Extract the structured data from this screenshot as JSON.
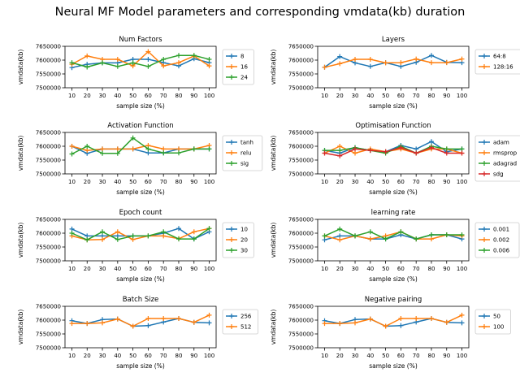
{
  "figure": {
    "title": "Neural MF Model parameters and corresponding vmdata(kb) duration"
  },
  "colors": {
    "series": [
      "#1f77b4",
      "#ff7f0e",
      "#2ca02c",
      "#d62728"
    ],
    "axis": "#000000"
  },
  "chart_data": [
    {
      "type": "line",
      "title": "Num Factors",
      "xlabel": "sample size (%)",
      "ylabel": "vmdata(kb)",
      "x": [
        10,
        20,
        30,
        40,
        50,
        60,
        70,
        80,
        90,
        100
      ],
      "yticks": [
        "7500000",
        "7550000",
        "7600000",
        "7650000"
      ],
      "ylim": [
        7500000,
        7650000
      ],
      "legend": "right",
      "series": [
        {
          "name": "8",
          "values": [
            7573000,
            7585000,
            7590000,
            7590000,
            7603000,
            7603000,
            7591000,
            7579000,
            7605000,
            7591000
          ]
        },
        {
          "name": "16",
          "values": [
            7585000,
            7615000,
            7603000,
            7603000,
            7579000,
            7631000,
            7579000,
            7591000,
            7615000,
            7579000
          ]
        },
        {
          "name": "24",
          "values": [
            7591000,
            7575000,
            7590000,
            7577000,
            7590000,
            7577000,
            7603000,
            7617000,
            7617000,
            7603000
          ]
        }
      ]
    },
    {
      "type": "line",
      "title": "Layers",
      "xlabel": "sample size (%)",
      "ylabel": "vmdata(kb)",
      "x": [
        10,
        20,
        30,
        40,
        50,
        60,
        70,
        80,
        90,
        100
      ],
      "yticks": [
        "7500000",
        "7550000",
        "7600000",
        "7650000"
      ],
      "ylim": [
        7500000,
        7650000
      ],
      "legend": "right",
      "series": [
        {
          "name": "64:8",
          "values": [
            7574000,
            7613000,
            7590000,
            7577000,
            7591000,
            7577000,
            7592000,
            7617000,
            7592000,
            7591000
          ]
        },
        {
          "name": "128:16",
          "values": [
            7574000,
            7587000,
            7603000,
            7603000,
            7590000,
            7591000,
            7604000,
            7591000,
            7591000,
            7604000
          ]
        }
      ]
    },
    {
      "type": "line",
      "title": "Activation Function",
      "xlabel": "sample size (%)",
      "ylabel": "vmdata(kb)",
      "x": [
        10,
        20,
        30,
        40,
        50,
        60,
        70,
        80,
        90,
        100
      ],
      "yticks": [
        "7500000",
        "7550000",
        "7600000",
        "7650000"
      ],
      "ylim": [
        7500000,
        7650000
      ],
      "legend": "right",
      "series": [
        {
          "name": "tanh",
          "values": [
            7600000,
            7574000,
            7590000,
            7590000,
            7590000,
            7576000,
            7576000,
            7590000,
            7590000,
            7590000
          ]
        },
        {
          "name": "relu",
          "values": [
            7600000,
            7585000,
            7590000,
            7590000,
            7590000,
            7603000,
            7590000,
            7590000,
            7590000,
            7603000
          ]
        },
        {
          "name": "sig",
          "values": [
            7572000,
            7600000,
            7574000,
            7574000,
            7630000,
            7590000,
            7576000,
            7576000,
            7590000,
            7590000
          ]
        }
      ]
    },
    {
      "type": "line",
      "title": "Optimisation Function",
      "xlabel": "sample size (%)",
      "ylabel": "vmdata(kb)",
      "x": [
        10,
        20,
        30,
        40,
        50,
        60,
        70,
        80,
        90,
        100
      ],
      "yticks": [
        "7500000",
        "7550000",
        "7600000",
        "7650000"
      ],
      "ylim": [
        7500000,
        7650000
      ],
      "legend": "right",
      "series": [
        {
          "name": "adam",
          "values": [
            7585000,
            7575000,
            7595000,
            7585000,
            7580000,
            7603000,
            7590000,
            7617000,
            7580000,
            7590000
          ]
        },
        {
          "name": "rmsprop",
          "values": [
            7575000,
            7600000,
            7575000,
            7590000,
            7580000,
            7590000,
            7575000,
            7590000,
            7590000,
            7575000
          ]
        },
        {
          "name": "adagrad",
          "values": [
            7585000,
            7585000,
            7595000,
            7585000,
            7575000,
            7600000,
            7575000,
            7600000,
            7590000,
            7590000
          ]
        },
        {
          "name": "sdg",
          "values": [
            7575000,
            7565000,
            7590000,
            7585000,
            7580000,
            7595000,
            7575000,
            7595000,
            7575000,
            7575000
          ]
        }
      ]
    },
    {
      "type": "line",
      "title": "Epoch count",
      "xlabel": "sample size (%)",
      "ylabel": "vmdata(kb)",
      "x": [
        10,
        20,
        30,
        40,
        50,
        60,
        70,
        80,
        90,
        100
      ],
      "yticks": [
        "7500000",
        "7550000",
        "7600000",
        "7650000"
      ],
      "ylim": [
        7500000,
        7650000
      ],
      "legend": "right",
      "series": [
        {
          "name": "10",
          "values": [
            7615000,
            7590000,
            7590000,
            7590000,
            7590000,
            7590000,
            7600000,
            7617000,
            7579000,
            7605000
          ]
        },
        {
          "name": "20",
          "values": [
            7590000,
            7576000,
            7577000,
            7605000,
            7577000,
            7590000,
            7590000,
            7580000,
            7605000,
            7617000
          ]
        },
        {
          "name": "30",
          "values": [
            7600000,
            7576000,
            7605000,
            7577000,
            7590000,
            7590000,
            7605000,
            7579000,
            7579000,
            7617000
          ]
        }
      ]
    },
    {
      "type": "line",
      "title": "learning rate",
      "xlabel": "sample size (%)",
      "ylabel": "vmdata(kb)",
      "x": [
        10,
        20,
        30,
        40,
        50,
        60,
        70,
        80,
        90,
        100
      ],
      "yticks": [
        "7500000",
        "7550000",
        "7600000",
        "7650000"
      ],
      "ylim": [
        7500000,
        7650000
      ],
      "legend": "right",
      "series": [
        {
          "name": "0.001",
          "values": [
            7576000,
            7590000,
            7590000,
            7579000,
            7579000,
            7594000,
            7579000,
            7594000,
            7594000,
            7579000
          ]
        },
        {
          "name": "0.002",
          "values": [
            7590000,
            7576000,
            7590000,
            7579000,
            7590000,
            7605000,
            7579000,
            7579000,
            7594000,
            7590000
          ]
        },
        {
          "name": "0.006",
          "values": [
            7590000,
            7615000,
            7590000,
            7605000,
            7579000,
            7605000,
            7579000,
            7594000,
            7594000,
            7594000
          ]
        }
      ]
    },
    {
      "type": "line",
      "title": "Batch Size",
      "xlabel": "sample size (%)",
      "ylabel": "vmdata(kb)",
      "x": [
        10,
        20,
        30,
        40,
        50,
        60,
        70,
        80,
        90,
        100
      ],
      "yticks": [
        "7500000",
        "7550000",
        "7600000",
        "7650000"
      ],
      "ylim": [
        7500000,
        7650000
      ],
      "legend": "right",
      "series": [
        {
          "name": "256",
          "values": [
            7598000,
            7588000,
            7602000,
            7604000,
            7578000,
            7580000,
            7593000,
            7606000,
            7592000,
            7590000
          ]
        },
        {
          "name": "512",
          "values": [
            7588000,
            7588000,
            7590000,
            7604000,
            7578000,
            7606000,
            7606000,
            7606000,
            7592000,
            7618000
          ]
        }
      ]
    },
    {
      "type": "line",
      "title": "Negative pairing",
      "xlabel": "sample size (%)",
      "ylabel": "vmdata(kb)",
      "x": [
        10,
        20,
        30,
        40,
        50,
        60,
        70,
        80,
        90,
        100
      ],
      "yticks": [
        "7500000",
        "7550000",
        "7600000",
        "7650000"
      ],
      "ylim": [
        7500000,
        7650000
      ],
      "legend": "right",
      "series": [
        {
          "name": "50",
          "values": [
            7598000,
            7588000,
            7602000,
            7604000,
            7578000,
            7580000,
            7593000,
            7606000,
            7592000,
            7590000
          ]
        },
        {
          "name": "100",
          "values": [
            7588000,
            7588000,
            7590000,
            7604000,
            7578000,
            7606000,
            7606000,
            7606000,
            7592000,
            7618000
          ]
        }
      ]
    }
  ]
}
